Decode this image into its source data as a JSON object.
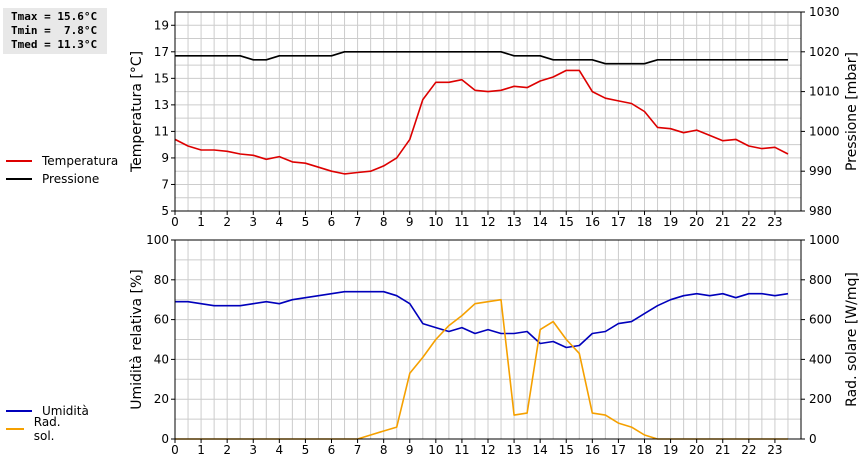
{
  "stats": {
    "tmax": "Tmax = 15.6°C",
    "tmin": "Tmin =  7.8°C",
    "tmed": "Tmed = 11.3°C"
  },
  "colors": {
    "temperatura": "#dd0000",
    "pressione": "#000000",
    "umidita": "#0000bb",
    "rad": "#f5a000",
    "grid": "#cccccc"
  },
  "legend_top": [
    {
      "label": "Temperatura",
      "color": "#dd0000"
    },
    {
      "label": "Pressione",
      "color": "#000000"
    }
  ],
  "legend_bottom": [
    {
      "label": "Umidità",
      "color": "#0000bb"
    },
    {
      "label": "Rad. sol.",
      "color": "#f5a000"
    }
  ],
  "chart_data": [
    {
      "type": "line",
      "ylabel": "Temperatura [°C]",
      "ylabel_right": "Pressione [mbar]",
      "xlim": [
        0,
        24
      ],
      "ylim": [
        5,
        20
      ],
      "ylim_right": [
        980,
        1030
      ],
      "x_ticks": [
        "0",
        "1",
        "2",
        "3",
        "4",
        "5",
        "6",
        "7",
        "8",
        "9",
        "10",
        "11",
        "12",
        "13",
        "14",
        "15",
        "16",
        "17",
        "18",
        "19",
        "20",
        "21",
        "22",
        "23"
      ],
      "y_ticks": [
        "5",
        "7",
        "9",
        "11",
        "13",
        "15",
        "17",
        "19"
      ],
      "y_ticks_right": [
        "980",
        "990",
        "1000",
        "1010",
        "1020",
        "1030"
      ],
      "grid": true,
      "series": [
        {
          "name": "Temperatura",
          "axis": "left",
          "color": "#dd0000",
          "x": [
            0,
            0.5,
            1,
            1.5,
            2,
            2.5,
            3,
            3.5,
            4,
            4.5,
            5,
            5.5,
            6,
            6.5,
            7,
            7.5,
            8,
            8.5,
            9,
            9.5,
            10,
            10.5,
            11,
            11.5,
            12,
            12.5,
            13,
            13.5,
            14,
            14.5,
            15,
            15.5,
            16,
            16.5,
            17,
            17.5,
            18,
            18.5,
            19,
            19.5,
            20,
            20.5,
            21,
            21.5,
            22,
            22.5,
            23,
            23.5
          ],
          "y": [
            10.4,
            9.9,
            9.6,
            9.6,
            9.5,
            9.3,
            9.2,
            8.9,
            9.1,
            8.7,
            8.6,
            8.3,
            8.0,
            7.8,
            7.9,
            8.0,
            8.4,
            9.0,
            10.4,
            13.4,
            14.7,
            14.7,
            14.9,
            14.1,
            14.0,
            14.1,
            14.4,
            14.3,
            14.8,
            15.1,
            15.6,
            15.6,
            14.0,
            13.5,
            13.3,
            13.1,
            12.5,
            11.3,
            11.2,
            10.9,
            11.1,
            10.7,
            10.3,
            10.4,
            9.9,
            9.7,
            9.8,
            9.3
          ]
        },
        {
          "name": "Pressione",
          "axis": "right",
          "color": "#000000",
          "x": [
            0,
            0.5,
            1,
            1.5,
            2,
            2.5,
            3,
            3.5,
            4,
            4.5,
            5,
            5.5,
            6,
            6.5,
            7,
            7.5,
            8,
            8.5,
            9,
            9.5,
            10,
            10.5,
            11,
            11.5,
            12,
            12.5,
            13,
            13.5,
            14,
            14.5,
            15,
            15.5,
            16,
            16.5,
            17,
            17.5,
            18,
            18.5,
            19,
            19.5,
            20,
            20.5,
            21,
            21.5,
            22,
            22.5,
            23,
            23.5
          ],
          "y": [
            1019,
            1019,
            1019,
            1019,
            1019,
            1019,
            1018,
            1018,
            1019,
            1019,
            1019,
            1019,
            1019,
            1020,
            1020,
            1020,
            1020,
            1020,
            1020,
            1020,
            1020,
            1020,
            1020,
            1020,
            1020,
            1020,
            1019,
            1019,
            1019,
            1018,
            1018,
            1018,
            1018,
            1017,
            1017,
            1017,
            1017,
            1018,
            1018,
            1018,
            1018,
            1018,
            1018,
            1018,
            1018,
            1018,
            1018,
            1018
          ]
        }
      ]
    },
    {
      "type": "line",
      "ylabel": "Umidità relativa [%]",
      "ylabel_right": "Rad. solare [W/mq]",
      "xlim": [
        0,
        24
      ],
      "ylim": [
        0,
        100
      ],
      "ylim_right": [
        0,
        1000
      ],
      "x_ticks": [
        "0",
        "1",
        "2",
        "3",
        "4",
        "5",
        "6",
        "7",
        "8",
        "9",
        "10",
        "11",
        "12",
        "13",
        "14",
        "15",
        "16",
        "17",
        "18",
        "19",
        "20",
        "21",
        "22",
        "23"
      ],
      "y_ticks": [
        "0",
        "20",
        "40",
        "60",
        "80",
        "100"
      ],
      "y_ticks_right": [
        "0",
        "200",
        "400",
        "600",
        "800",
        "1000"
      ],
      "grid": true,
      "series": [
        {
          "name": "Umidità",
          "axis": "left",
          "color": "#0000bb",
          "x": [
            0,
            0.5,
            1,
            1.5,
            2,
            2.5,
            3,
            3.5,
            4,
            4.5,
            5,
            5.5,
            6,
            6.5,
            7,
            7.5,
            8,
            8.5,
            9,
            9.5,
            10,
            10.5,
            11,
            11.5,
            12,
            12.5,
            13,
            13.5,
            14,
            14.5,
            15,
            15.5,
            16,
            16.5,
            17,
            17.5,
            18,
            18.5,
            19,
            19.5,
            20,
            20.5,
            21,
            21.5,
            22,
            22.5,
            23,
            23.5
          ],
          "y": [
            69,
            69,
            68,
            67,
            67,
            67,
            68,
            69,
            68,
            70,
            71,
            72,
            73,
            74,
            74,
            74,
            74,
            72,
            68,
            58,
            56,
            54,
            56,
            53,
            55,
            53,
            53,
            54,
            48,
            49,
            46,
            47,
            53,
            54,
            58,
            59,
            63,
            67,
            70,
            72,
            73,
            72,
            73,
            71,
            73,
            73,
            72,
            73
          ]
        },
        {
          "name": "Rad. sol.",
          "axis": "right",
          "color": "#f5a000",
          "x": [
            0,
            0.5,
            1,
            1.5,
            2,
            2.5,
            3,
            3.5,
            4,
            4.5,
            5,
            5.5,
            6,
            6.5,
            7,
            7.5,
            8,
            8.5,
            9,
            9.5,
            10,
            10.5,
            11,
            11.5,
            12,
            12.5,
            13,
            13.5,
            14,
            14.5,
            15,
            15.5,
            16,
            16.5,
            17,
            17.5,
            18,
            18.5,
            19,
            19.5,
            20,
            20.5,
            21,
            21.5,
            22,
            22.5,
            23,
            23.5
          ],
          "y": [
            0,
            0,
            0,
            0,
            0,
            0,
            0,
            0,
            0,
            0,
            0,
            0,
            0,
            0,
            0,
            20,
            40,
            60,
            330,
            410,
            500,
            570,
            620,
            680,
            690,
            700,
            120,
            130,
            550,
            590,
            500,
            430,
            130,
            120,
            80,
            60,
            20,
            0,
            0,
            0,
            0,
            0,
            0,
            0,
            0,
            0,
            0,
            0
          ]
        }
      ]
    }
  ]
}
